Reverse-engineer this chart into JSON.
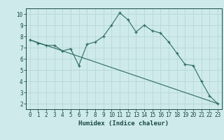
{
  "xlabel": "Humidex (Indice chaleur)",
  "bg_color": "#ceeaea",
  "line_color": "#2d6b61",
  "grid_color": "#b8d8d8",
  "xlim": [
    -0.5,
    23.5
  ],
  "ylim": [
    1.5,
    10.5
  ],
  "xticks": [
    0,
    1,
    2,
    3,
    4,
    5,
    6,
    7,
    8,
    9,
    10,
    11,
    12,
    13,
    14,
    15,
    16,
    17,
    18,
    19,
    20,
    21,
    22,
    23
  ],
  "yticks": [
    2,
    3,
    4,
    5,
    6,
    7,
    8,
    9,
    10
  ],
  "line1_x": [
    0,
    1,
    2,
    3,
    4,
    5,
    6,
    7,
    8,
    9,
    10,
    11,
    12,
    13,
    14,
    15,
    16,
    17,
    18,
    19,
    20,
    21,
    22,
    23
  ],
  "line1_y": [
    7.7,
    7.4,
    7.2,
    7.2,
    6.7,
    6.9,
    5.4,
    7.3,
    7.5,
    8.0,
    9.0,
    10.1,
    9.5,
    8.4,
    9.0,
    8.5,
    8.3,
    7.5,
    6.5,
    5.5,
    5.4,
    4.0,
    2.7,
    2.0
  ],
  "line2_x": [
    0,
    23
  ],
  "line2_y": [
    7.7,
    2.0
  ]
}
